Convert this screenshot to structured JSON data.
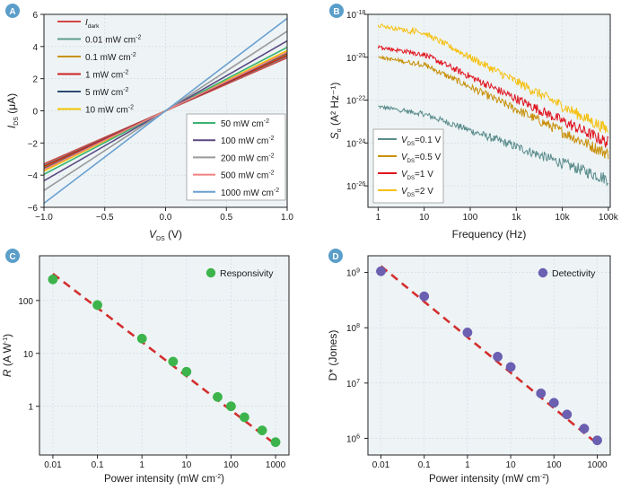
{
  "chart_data": [
    {
      "id": "A",
      "type": "line",
      "panel_label": "A",
      "xlabel_main": "V",
      "xlabel_sub": "DS",
      "xlabel_unit": " (V)",
      "ylabel_main": "I",
      "ylabel_sub": "DS",
      "ylabel_unit": " (μA)",
      "xlim": [
        -1.0,
        1.0
      ],
      "ylim": [
        -6,
        6
      ],
      "xticks": [
        -1.0,
        -0.5,
        0.0,
        0.5,
        1.0
      ],
      "xtick_labels": [
        "−1.0",
        "−0.5",
        "0.0",
        "0.5",
        "1.0"
      ],
      "yticks": [
        -6,
        -4,
        -2,
        0,
        2,
        4,
        6
      ],
      "ytick_labels": [
        "−6",
        "−4",
        "−2",
        "0",
        "2",
        "4",
        "6"
      ],
      "grid": true,
      "legend_left": [
        "dark",
        "0.01",
        "0.1",
        "1",
        "5",
        "10"
      ],
      "legend_right": [
        "50",
        "100",
        "200",
        "500",
        "1000"
      ],
      "series": [
        {
          "key": "dark",
          "name_main": "I",
          "name_sub": "dark",
          "color": "#d64545",
          "slope": 3.3
        },
        {
          "key": "0.01",
          "name": "0.01 mW cm",
          "sup": "-2",
          "color": "#5e9a8a",
          "slope": 3.4
        },
        {
          "key": "0.1",
          "name": "0.1 mW cm",
          "sup": "-2",
          "color": "#c9930a",
          "slope": 3.52
        },
        {
          "key": "1",
          "name": "1 mW cm",
          "sup": "-2",
          "color": "#cc2020",
          "slope": 3.45
        },
        {
          "key": "5",
          "name": "5 mW cm",
          "sup": "-2",
          "color": "#2e4b72",
          "slope": 3.6
        },
        {
          "key": "10",
          "name": "10 mW cm",
          "sup": "-2",
          "color": "#f2c200",
          "slope": 3.75
        },
        {
          "key": "50",
          "name": "50 mW cm",
          "sup": "-2",
          "color": "#3cb371",
          "slope": 3.95
        },
        {
          "key": "100",
          "name": "100 mW cm",
          "sup": "-2",
          "color": "#5a4a80",
          "slope": 4.35
        },
        {
          "key": "200",
          "name": "200 mW cm",
          "sup": "-2",
          "color": "#9a9a9a",
          "slope": 4.95
        },
        {
          "key": "500",
          "name": "500 mW cm",
          "sup": "-2",
          "color": "#f08080",
          "slope": 3.65
        },
        {
          "key": "1000",
          "name": "1000 mW cm",
          "sup": "-2",
          "color": "#6a9fd0",
          "slope": 5.75
        }
      ]
    },
    {
      "id": "B",
      "type": "line",
      "panel_label": "B",
      "xlabel": "Frequency (Hz)",
      "ylabel_main": "S",
      "ylabel_sub": "α",
      "ylabel_unit": " (A² Hz⁻¹)",
      "xscale": "log",
      "yscale": "log",
      "xlim": [
        0.6,
        110000
      ],
      "ylim": [
        1e-27,
        1e-18
      ],
      "xticks": [
        1,
        10,
        100,
        1000,
        10000,
        100000
      ],
      "xtick_labels": [
        "1",
        "10",
        "100",
        "1k",
        "10k",
        "100k"
      ],
      "yticks": [
        1e-26,
        1e-24,
        1e-22,
        1e-20,
        1e-18
      ],
      "ytick_base": [
        "10",
        "10",
        "10",
        "10",
        "10"
      ],
      "ytick_exp": [
        "-26",
        "-24",
        "-22",
        "-20",
        "-18"
      ],
      "grid": true,
      "series": [
        {
          "label_main": "V",
          "label_sub": "DS",
          "label_val": "=0.1 V",
          "color": "#5b8c8c",
          "start": 5e-23,
          "end": 2e-26
        },
        {
          "label_main": "V",
          "label_sub": "DS",
          "label_val": "=0.5 V",
          "color": "#c8900a",
          "start": 1e-20,
          "end": 3e-25
        },
        {
          "label_main": "V",
          "label_sub": "DS",
          "label_val": "=1 V",
          "color": "#e0141e",
          "start": 3e-20,
          "end": 1e-24
        },
        {
          "label_main": "V",
          "label_sub": "DS",
          "label_val": "=2 V",
          "color": "#f5c010",
          "start": 3e-19,
          "end": 4e-24
        }
      ]
    },
    {
      "id": "C",
      "type": "scatter",
      "panel_label": "C",
      "title": "",
      "xlabel_main": "Power intensity (mW cm",
      "xlabel_sup": "-2",
      "xlabel_end": ")",
      "ylabel_main": "R",
      "ylabel_unit": " (A W",
      "ylabel_sup": "-1",
      "ylabel_end": ")",
      "xscale": "log",
      "yscale": "log",
      "xlim": [
        0.005,
        2000
      ],
      "ylim": [
        0.12,
        700
      ],
      "xticks": [
        0.01,
        0.1,
        1,
        10,
        100,
        1000
      ],
      "xtick_labels": [
        "0.01",
        "0.1",
        "1",
        "10",
        "100",
        "1000"
      ],
      "yticks": [
        1,
        10,
        100
      ],
      "ytick_labels": [
        "1",
        "10",
        "100"
      ],
      "grid": true,
      "legend": "Responsivity",
      "marker_color": "#3cb44b",
      "fit_color": "#d32f2f",
      "fit": {
        "x": [
          0.01,
          1000
        ],
        "y": [
          320,
          0.19
        ]
      },
      "x": [
        0.01,
        0.1,
        1,
        5,
        10,
        50,
        100,
        200,
        500,
        1000
      ],
      "y": [
        250,
        82,
        19,
        7,
        4.5,
        1.5,
        1.0,
        0.62,
        0.35,
        0.21
      ]
    },
    {
      "id": "D",
      "type": "scatter",
      "panel_label": "D",
      "title": "",
      "xlabel_main": "Power intensity (mW cm",
      "xlabel_sup": "-2",
      "xlabel_end": ")",
      "ylabel": "D* (Jones)",
      "xscale": "log",
      "yscale": "log",
      "xlim": [
        0.005,
        2000
      ],
      "ylim": [
        500000.0,
        2000000000.0
      ],
      "xticks": [
        0.01,
        0.1,
        1,
        10,
        100,
        1000
      ],
      "xtick_labels": [
        "0.01",
        "0.1",
        "1",
        "10",
        "100",
        "1000"
      ],
      "yticks": [
        1000000.0,
        10000000.0,
        100000000.0,
        1000000000.0
      ],
      "ytick_base": [
        "10",
        "10",
        "10",
        "10"
      ],
      "ytick_exp": [
        "6",
        "7",
        "8",
        "9"
      ],
      "grid": true,
      "legend": "Detectivity",
      "marker_color": "#6a5fb0",
      "fit_color": "#d32f2f",
      "fit": {
        "x": [
          0.01,
          1000
        ],
        "y": [
          1300000000.0,
          800000.0
        ]
      },
      "x": [
        0.01,
        0.1,
        1,
        5,
        10,
        50,
        100,
        200,
        500,
        1000
      ],
      "y": [
        1050000000.0,
        370000000.0,
        82000000.0,
        30000000.0,
        19500000.0,
        6500000.0,
        4400000.0,
        2700000.0,
        1500000.0,
        920000.0
      ]
    }
  ]
}
